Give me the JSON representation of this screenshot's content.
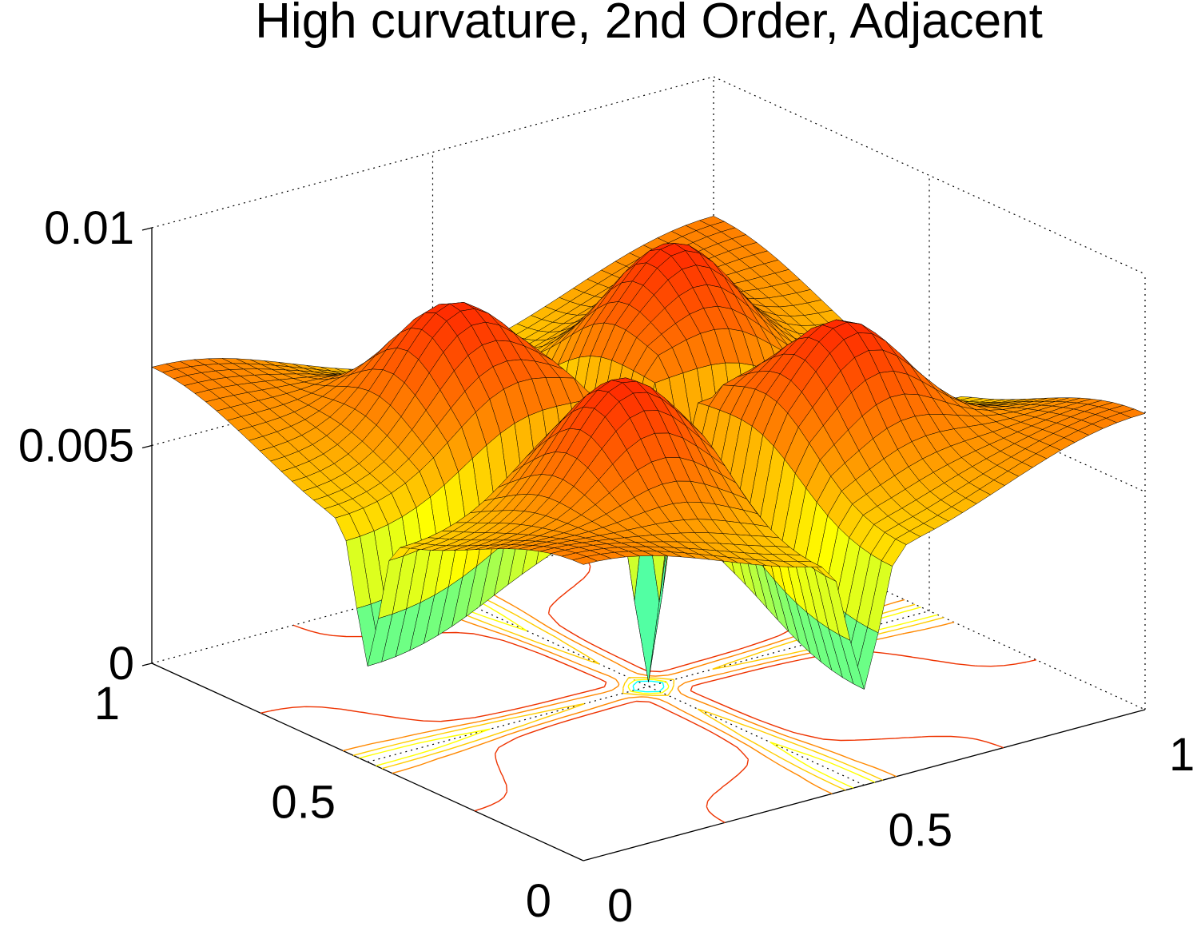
{
  "chart_data": {
    "type": "surface",
    "title": "High curvature, 2nd Order, Adjacent",
    "xlabel": "",
    "ylabel": "",
    "zlabel": "",
    "xlim": [
      0,
      1
    ],
    "ylim": [
      0,
      1
    ],
    "zlim": [
      0,
      0.01
    ],
    "x_ticks": [
      "0",
      "0.5",
      "1"
    ],
    "y_ticks": [
      "0",
      "0.5",
      "1"
    ],
    "z_ticks": [
      "0",
      "0.005",
      "0.01"
    ],
    "grid": true,
    "view": "3d",
    "colormap": "jet",
    "surface_samples": {
      "center_value": 0.0002,
      "corner_value": 0.006,
      "edge_midpoint_value": 0.003,
      "quadrant_peak_value": 0.0085,
      "spike_near_center_value": 0.008
    },
    "contour_projection_on_floor": true
  }
}
